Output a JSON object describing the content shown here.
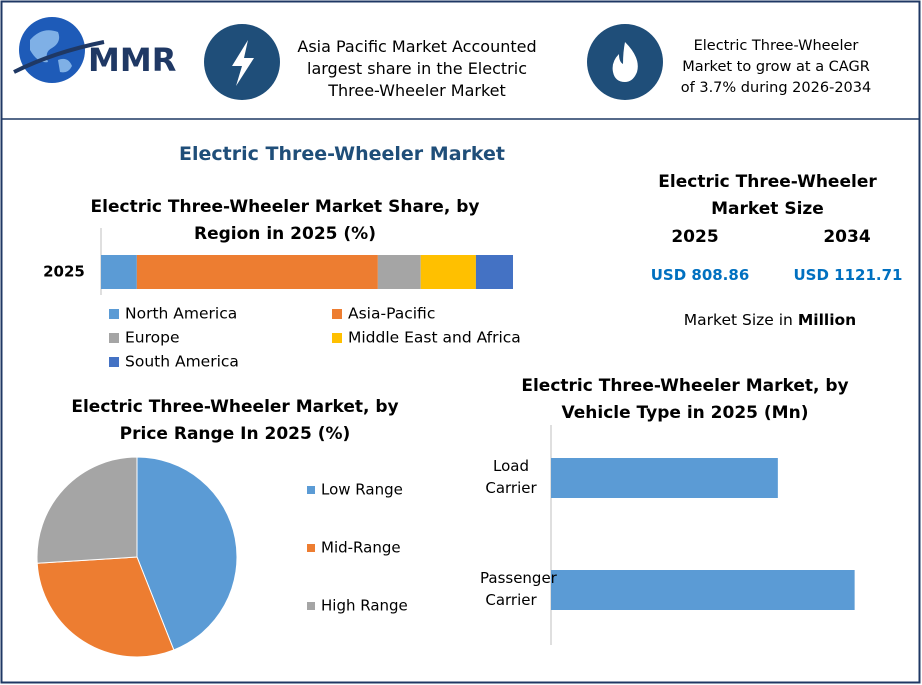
{
  "header": {
    "logo_text": "MMR",
    "fact1": "Asia Pacific Market Accounted largest share in the Electric Three-Wheeler Market",
    "fact2": "Electric Three-Wheeler Market to grow at a CAGR of 3.7% during 2026-2034"
  },
  "main_title": "Electric Three-Wheeler Market",
  "market_size": {
    "title": "Electric Three-Wheeler Market Size",
    "years": [
      "2025",
      "2034"
    ],
    "values": [
      "USD 808.86",
      "USD 1121.71"
    ],
    "note": "Market Size in",
    "note_unit": "Million"
  },
  "chart_data": [
    {
      "type": "stacked_bar",
      "title": "Electric Three-Wheeler Market Share, by Region in 2025 (%)",
      "categories": [
        "2025"
      ],
      "xlim": [
        0,
        100
      ],
      "series": [
        {
          "name": "North America",
          "color": "#5b9bd5",
          "values": [
            8.7
          ]
        },
        {
          "name": "Asia-Pacific",
          "color": "#ed7d31",
          "values": [
            58.5
          ]
        },
        {
          "name": "Europe",
          "color": "#a5a5a5",
          "values": [
            10.4
          ]
        },
        {
          "name": "Middle East and Africa",
          "color": "#ffc000",
          "values": [
            13.4
          ]
        },
        {
          "name": "South America",
          "color": "#4472c4",
          "values": [
            9.0
          ]
        }
      ]
    },
    {
      "type": "pie",
      "title": "Electric Three-Wheeler Market, by Price Range In 2025 (%)",
      "categories": [
        "Low Range",
        "Mid-Range",
        "High Range"
      ],
      "values": [
        44,
        30,
        26
      ],
      "colors": [
        "#5b9bd5",
        "#ed7d31",
        "#a5a5a5"
      ]
    },
    {
      "type": "bar",
      "orientation": "horizontal",
      "title": "Electric Three-Wheeler Market, by Vehicle Type in 2025 (Mn)",
      "categories": [
        "Load Carrier",
        "Passenger Carrier"
      ],
      "values": [
        65,
        87
      ],
      "color": "#5b9bd5",
      "xlim": [
        0,
        100
      ]
    }
  ]
}
